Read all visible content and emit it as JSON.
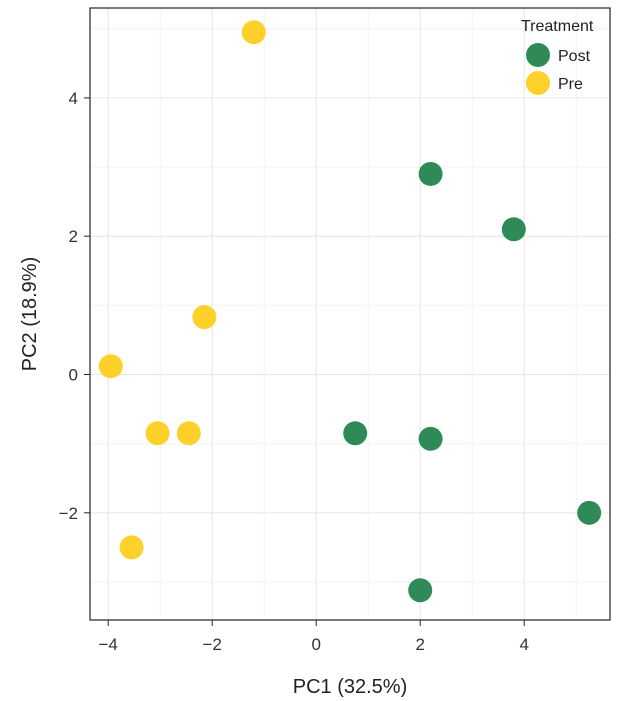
{
  "chart_data": {
    "type": "scatter",
    "title": "",
    "xlabel": "PC1 (32.5%)",
    "ylabel": "PC2 (18.9%)",
    "xlim": [
      -4.35,
      5.65
    ],
    "ylim": [
      -3.55,
      5.3
    ],
    "xticks": [
      -4,
      -2,
      0,
      2,
      4
    ],
    "xtick_labels": [
      "−4",
      "−2",
      "0",
      "2",
      "4"
    ],
    "yticks": [
      -2,
      0,
      2,
      4
    ],
    "ytick_labels": [
      "−2",
      "0",
      "2",
      "4"
    ],
    "grid": true,
    "legend": {
      "title": "Treatment",
      "position": "top-right"
    },
    "series": [
      {
        "name": "Post",
        "color": "#2e8b57",
        "points": [
          {
            "x": 2.2,
            "y": 2.9
          },
          {
            "x": 3.8,
            "y": 2.1
          },
          {
            "x": 0.75,
            "y": -0.85
          },
          {
            "x": 2.2,
            "y": -0.93
          },
          {
            "x": 5.25,
            "y": -2.0
          },
          {
            "x": 2.0,
            "y": -3.12
          }
        ]
      },
      {
        "name": "Pre",
        "color": "#fdd02a",
        "points": [
          {
            "x": -1.2,
            "y": 4.95
          },
          {
            "x": -2.15,
            "y": 0.83
          },
          {
            "x": -3.95,
            "y": 0.12
          },
          {
            "x": -3.05,
            "y": -0.85
          },
          {
            "x": -2.45,
            "y": -0.85
          },
          {
            "x": -3.55,
            "y": -2.5
          }
        ]
      }
    ]
  }
}
